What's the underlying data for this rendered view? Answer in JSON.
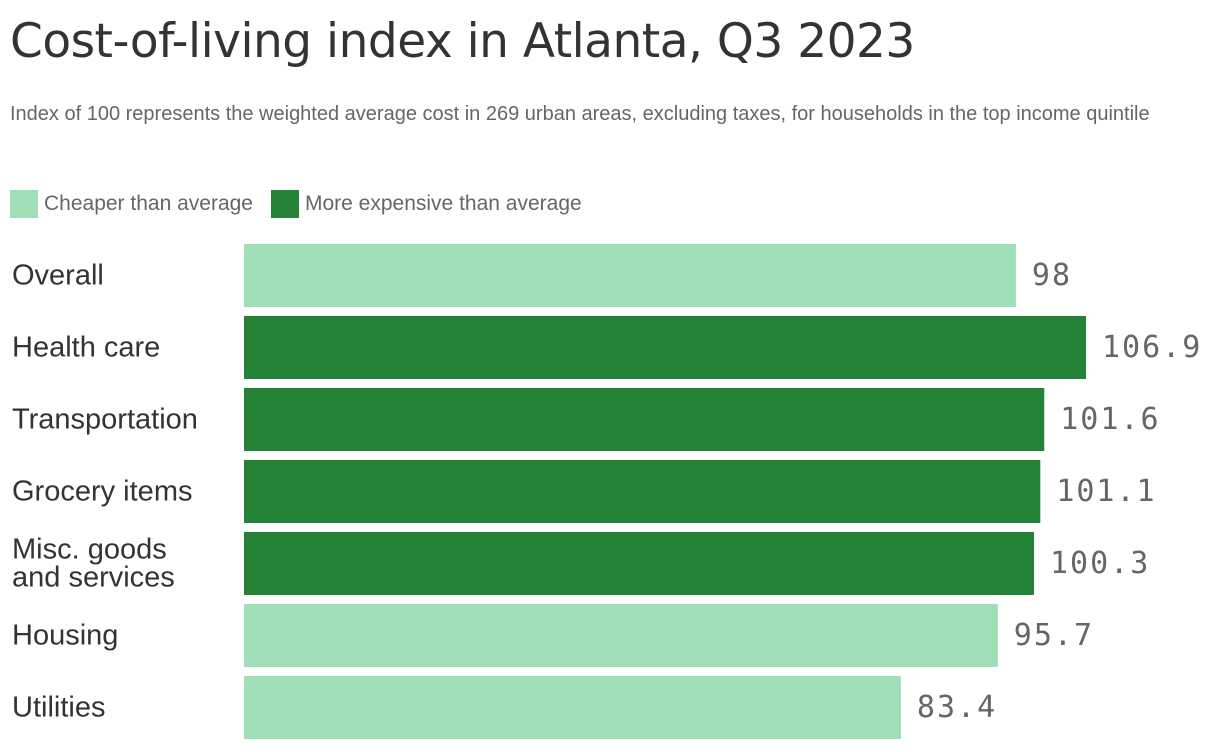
{
  "title": "Cost-of-living index in Atlanta, Q3 2023",
  "subtitle": "Index of 100 represents the weighted average cost in 269 urban areas, excluding taxes, for households in the top income quintile",
  "legend": [
    {
      "label": "Cheaper than average",
      "color": "#9fdeb6"
    },
    {
      "label": "More expensive than average",
      "color": "#248337"
    }
  ],
  "colors": {
    "cheaper": "#9fdeb6",
    "expensive": "#248337"
  },
  "chart_data": {
    "type": "bar",
    "orientation": "horizontal",
    "title": "Cost-of-living index in Atlanta, Q3 2023",
    "subtitle": "Index of 100 represents the weighted average cost in 269 urban areas, excluding taxes, for households in the top income quintile",
    "categories": [
      [
        "Overall"
      ],
      [
        "Health care"
      ],
      [
        "Transportation"
      ],
      [
        "Grocery items"
      ],
      [
        "Misc. goods",
        "and services"
      ],
      [
        "Housing"
      ],
      [
        "Utilities"
      ]
    ],
    "values": [
      98,
      106.9,
      101.6,
      101.1,
      100.3,
      95.7,
      83.4
    ],
    "value_labels": [
      "98",
      "106.9",
      "101.6",
      "101.1",
      "100.3",
      "95.7",
      "83.4"
    ],
    "groups": [
      "cheaper",
      "expensive",
      "expensive",
      "expensive",
      "expensive",
      "cheaper",
      "cheaper"
    ],
    "xlim": [
      0,
      106.9
    ],
    "grid": false,
    "legend_position": "top-left"
  }
}
